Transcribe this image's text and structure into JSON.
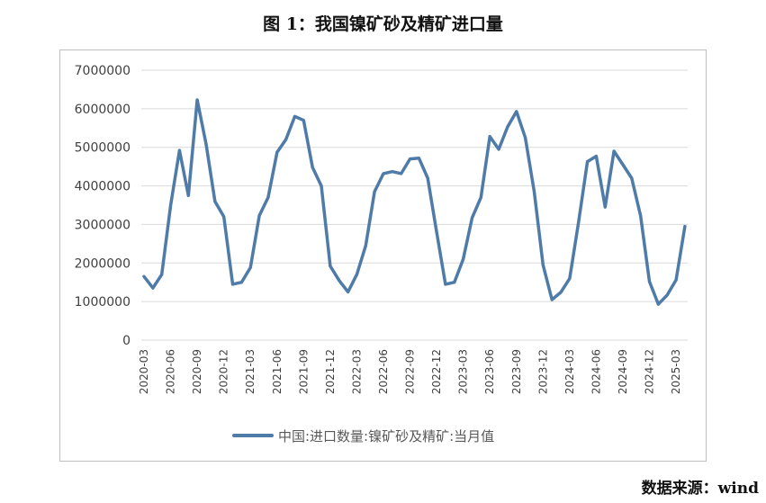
{
  "title": "图 1：我国镍矿砂及精矿进口量",
  "source": "数据来源：wind",
  "chart_data": {
    "type": "line",
    "title": "图 1：我国镍矿砂及精矿进口量",
    "ylim": [
      0,
      7000000
    ],
    "y_ticks": [
      "7000000",
      "6000000",
      "5000000",
      "4000000",
      "3000000",
      "2000000",
      "1000000",
      "0"
    ],
    "y_tick_values": [
      7000000,
      6000000,
      5000000,
      4000000,
      3000000,
      2000000,
      1000000,
      0
    ],
    "x_tick_labels": [
      "2020-03",
      "2020-06",
      "2020-09",
      "2020-12",
      "2021-03",
      "2021-06",
      "2021-09",
      "2021-12",
      "2022-03",
      "2022-06",
      "2022-09",
      "2022-12",
      "2023-03",
      "2023-06",
      "2023-09",
      "2023-12",
      "2024-03",
      "2024-06",
      "2024-09",
      "2024-12",
      "2025-03"
    ],
    "grid": true,
    "legend_position": "bottom",
    "color": "#4f7ba8",
    "series": [
      {
        "name": "中国:进口数量:镍矿砂及精矿:当月值",
        "x": [
          "2020-03",
          "2020-04",
          "2020-05",
          "2020-06",
          "2020-07",
          "2020-08",
          "2020-09",
          "2020-10",
          "2020-11",
          "2020-12",
          "2021-01",
          "2021-02",
          "2021-03",
          "2021-04",
          "2021-05",
          "2021-06",
          "2021-07",
          "2021-08",
          "2021-09",
          "2021-10",
          "2021-11",
          "2021-12",
          "2022-01",
          "2022-02",
          "2022-03",
          "2022-04",
          "2022-05",
          "2022-06",
          "2022-07",
          "2022-08",
          "2022-09",
          "2022-10",
          "2022-11",
          "2022-12",
          "2023-01",
          "2023-02",
          "2023-03",
          "2023-04",
          "2023-05",
          "2023-06",
          "2023-07",
          "2023-08",
          "2023-09",
          "2023-10",
          "2023-11",
          "2023-12",
          "2024-01",
          "2024-02",
          "2024-03",
          "2024-04",
          "2024-05",
          "2024-06",
          "2024-07",
          "2024-08",
          "2024-09",
          "2024-10",
          "2024-11",
          "2024-12",
          "2025-01",
          "2025-02",
          "2025-03",
          "2025-04"
        ],
        "values": [
          1650000,
          1350000,
          1700000,
          3500000,
          4920000,
          3750000,
          6230000,
          5080000,
          3600000,
          3200000,
          1450000,
          1500000,
          1880000,
          3230000,
          3700000,
          4870000,
          5200000,
          5800000,
          5700000,
          4480000,
          4000000,
          1920000,
          1550000,
          1250000,
          1700000,
          2450000,
          3850000,
          4320000,
          4370000,
          4320000,
          4700000,
          4720000,
          4200000,
          2800000,
          1450000,
          1500000,
          2100000,
          3170000,
          3700000,
          5280000,
          4950000,
          5530000,
          5930000,
          5250000,
          3850000,
          1950000,
          1050000,
          1240000,
          1600000,
          3050000,
          4630000,
          4770000,
          3450000,
          4900000,
          4550000,
          4200000,
          3220000,
          1520000,
          930000,
          1170000,
          1560000,
          2950000
        ]
      }
    ]
  }
}
